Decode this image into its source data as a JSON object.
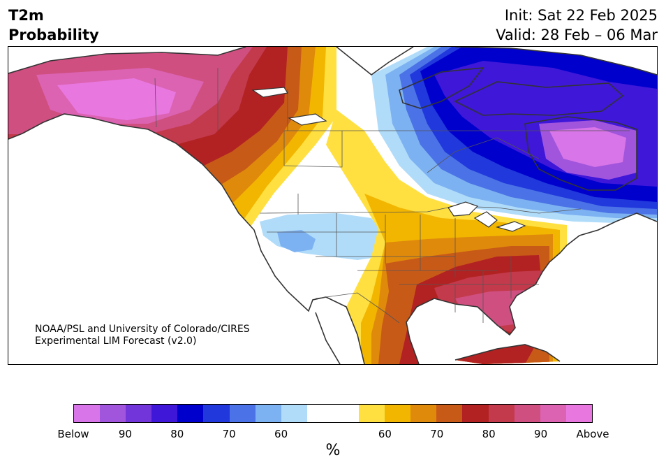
{
  "title": {
    "line1": "T2m",
    "line2": "Probability"
  },
  "dates": {
    "init": "Init: Sat 22 Feb 2025",
    "valid": "Valid: 28 Feb – 06 Mar"
  },
  "credit": {
    "line1": "NOAA/PSL and University of Colorado/CIRES",
    "line2": "Experimental LIM Forecast (v2.0)"
  },
  "palette": {
    "below": [
      "#d875e8",
      "#a155dc",
      "#7135da",
      "#3e17d9",
      "#0000cd",
      "#2038dc",
      "#4b72e6",
      "#7db2f2",
      "#b0dcfa"
    ],
    "neutral": "#ffffff",
    "above": [
      "#ffe040",
      "#f2b600",
      "#e08a0c",
      "#c85a18",
      "#b22222",
      "#c33a4c",
      "#cf4f80",
      "#dc62b2",
      "#e878e0"
    ]
  },
  "colorbar": {
    "segments": [
      "#d875e8",
      "#a155dc",
      "#7135da",
      "#3e17d9",
      "#0000cd",
      "#2038dc",
      "#4b72e6",
      "#7db2f2",
      "#b0dcfa",
      "#ffffff",
      "#ffffff",
      "#ffe040",
      "#f2b600",
      "#e08a0c",
      "#c85a18",
      "#b22222",
      "#c33a4c",
      "#cf4f80",
      "#dc62b2",
      "#e878e0"
    ],
    "ticks": [
      "Below",
      "90",
      "80",
      "70",
      "60",
      "60",
      "70",
      "80",
      "90",
      "Above"
    ],
    "unit": "%"
  }
}
